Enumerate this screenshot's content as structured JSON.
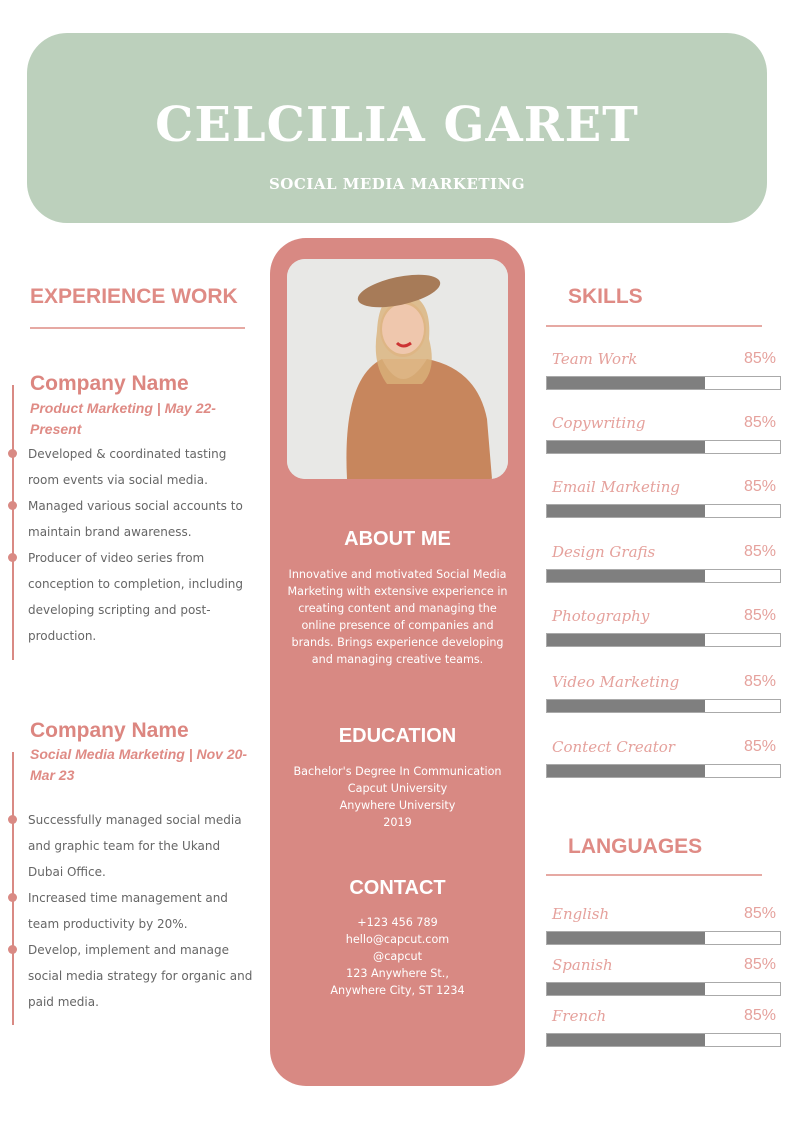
{
  "header": {
    "name": "CELCILIA GARET",
    "title": "SOCIAL MEDIA MARKETING"
  },
  "experience": {
    "title": "EXPERIENCE WORK",
    "jobs": [
      {
        "company": "Company Name",
        "role": "Product Marketing | May 22-Present",
        "bullets": [
          "Developed & coordinated tasting room events via social media.",
          "Managed various social accounts to maintain brand awareness.",
          "Producer of video series from conception to completion, including developing scripting and post-production."
        ]
      },
      {
        "company": "Company Name",
        "role": "Social Media Marketing | Nov 20-Mar 23",
        "bullets": [
          "Successfully managed social media and graphic team for the Ukand Dubai Office.",
          "Increased time management and team productivity by 20%.",
          "Develop, implement and manage social media strategy for organic and paid media."
        ]
      }
    ]
  },
  "about": {
    "title": "ABOUT ME",
    "text": "Innovative and motivated Social Media Marketing with extensive experience in creating content and managing the online presence of companies and brands. Brings experience developing and managing creative teams."
  },
  "education": {
    "title": "EDUCATION",
    "lines": [
      "Bachelor's Degree In Communication",
      "Capcut University",
      "Anywhere University",
      "2019"
    ]
  },
  "contact": {
    "title": "CONTACT",
    "lines": [
      "+123  456 789",
      "hello@capcut.com",
      "@capcut",
      "123 Anywhere St.,",
      "Anywhere City, ST 1234"
    ]
  },
  "skills": {
    "title": "SKILLS",
    "items": [
      {
        "name": "Team Work",
        "value": "85%",
        "fill": 68
      },
      {
        "name": "Copywriting",
        "value": "85%",
        "fill": 68
      },
      {
        "name": "Email Marketing",
        "value": "85%",
        "fill": 68
      },
      {
        "name": "Design Grafis",
        "value": "85%",
        "fill": 68
      },
      {
        "name": "Photography",
        "value": "85%",
        "fill": 68
      },
      {
        "name": "Video Marketing",
        "value": "85%",
        "fill": 68
      },
      {
        "name": "Contect Creator",
        "value": "85%",
        "fill": 68
      }
    ]
  },
  "languages": {
    "title": "LANGUAGES",
    "items": [
      {
        "name": "English",
        "value": "85%",
        "fill": 68
      },
      {
        "name": "Spanish",
        "value": "85%",
        "fill": 68
      },
      {
        "name": "French",
        "value": "85%",
        "fill": 68
      }
    ]
  }
}
